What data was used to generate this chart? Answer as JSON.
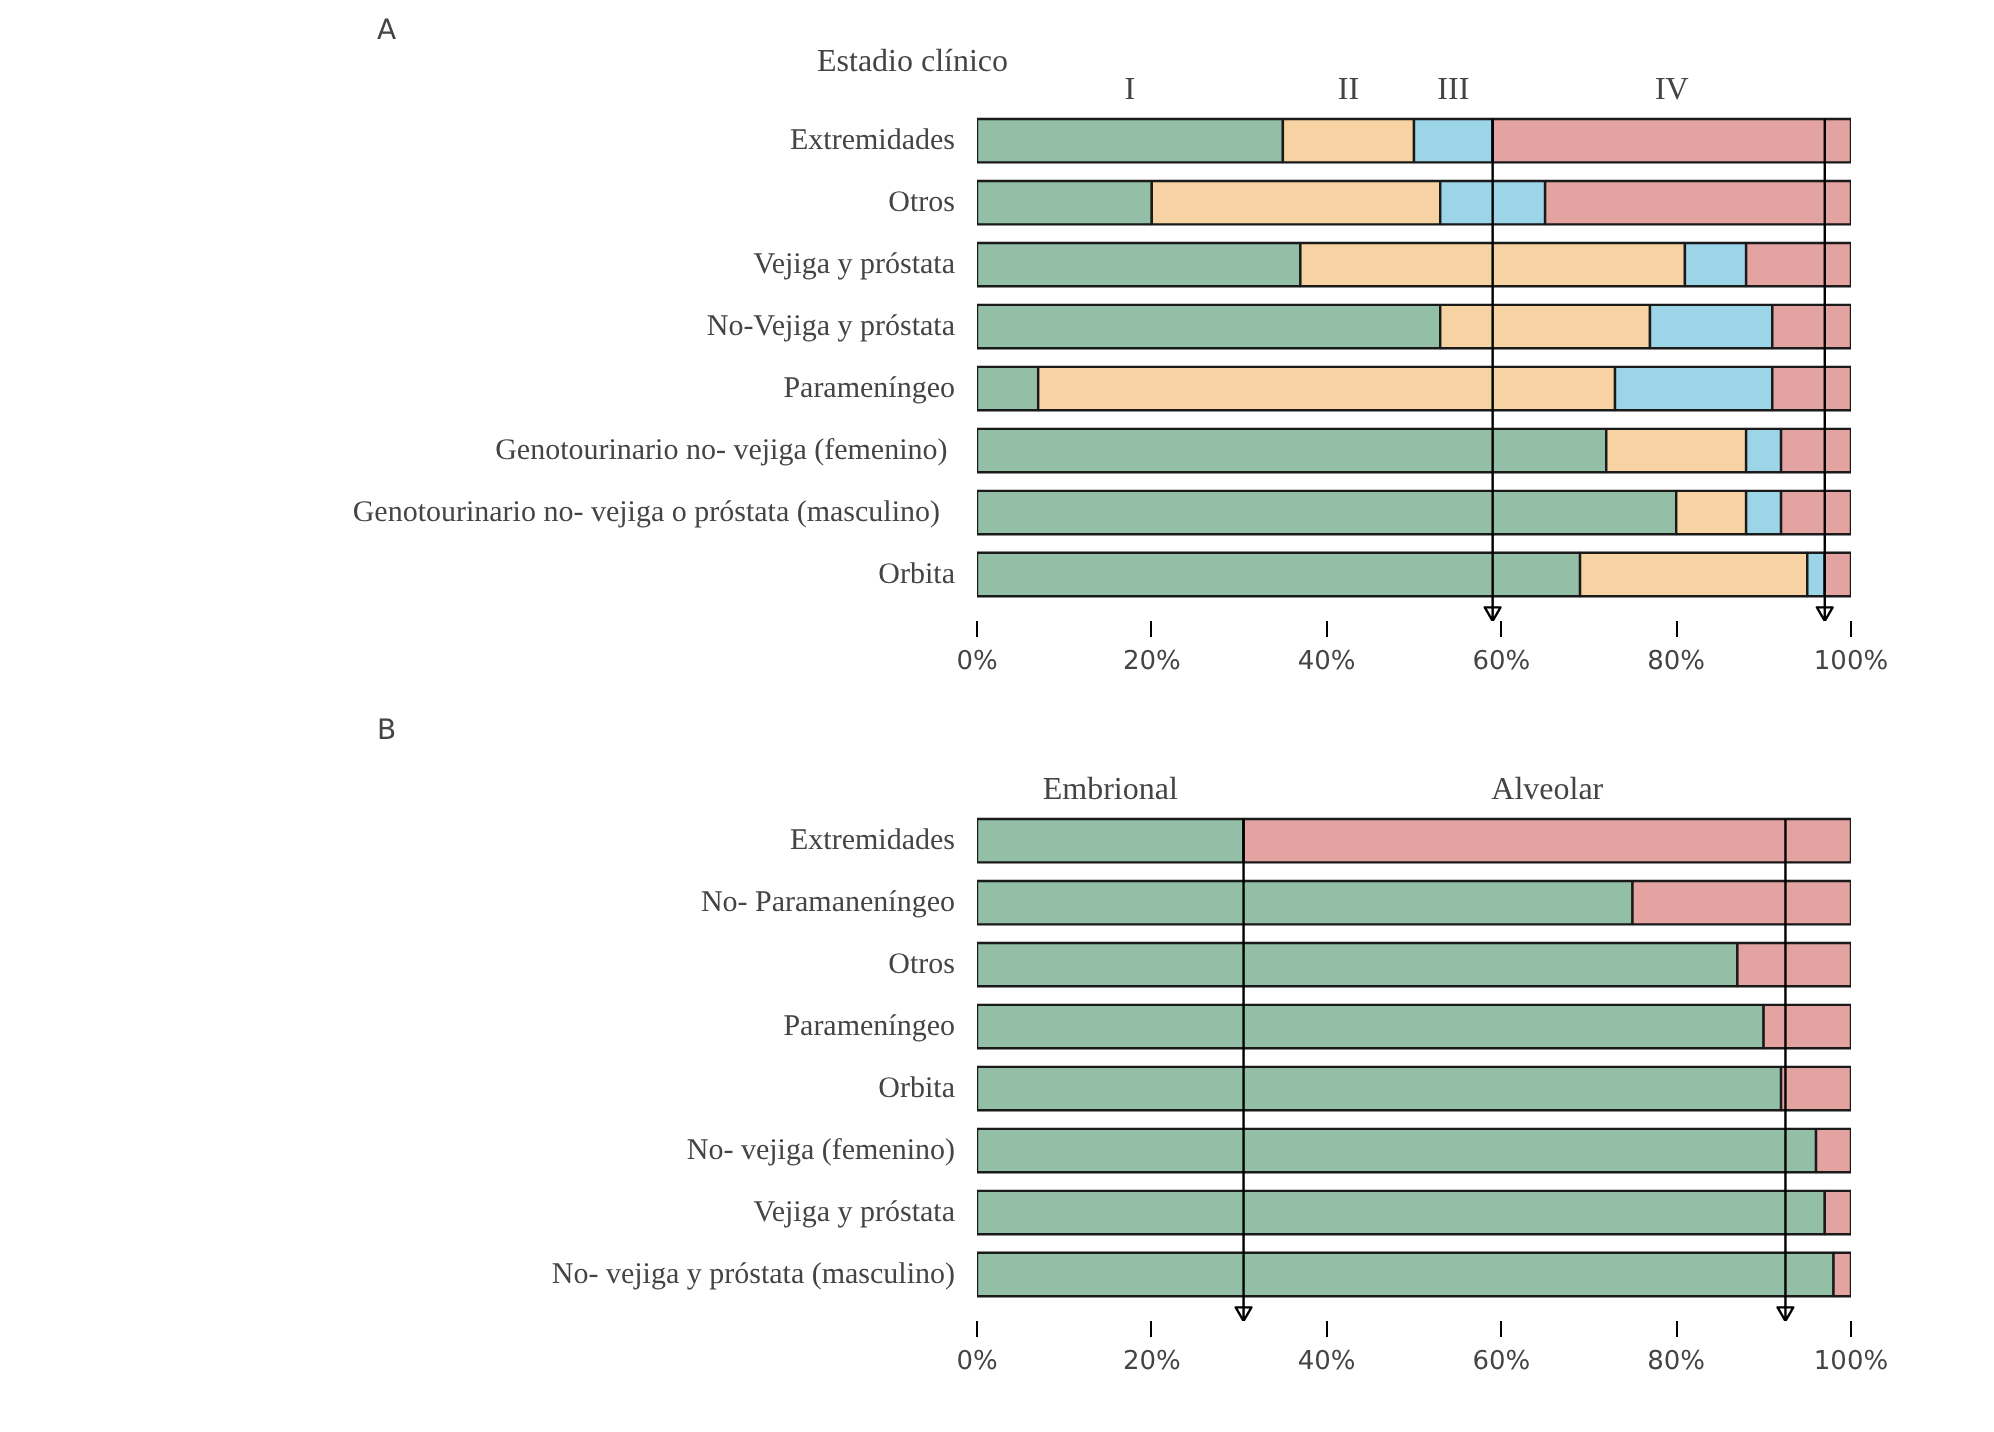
{
  "chart_data": [
    {
      "type": "bar",
      "orientation": "horizontal",
      "stacked": true,
      "title": "A",
      "legend_title": "Estadio clínico",
      "categories": [
        "Extremidades",
        "Otros",
        "Vejiga y próstata",
        "No-Vejiga y próstata",
        "Parameníngeo",
        "Genotourinario no-  vejiga (femenino)",
        "Genotourinario no-  vejiga o próstata  (masculino)",
        "Orbita"
      ],
      "series": [
        {
          "name": "I",
          "color": "#93bfa6",
          "values": [
            35,
            20,
            37,
            53,
            7,
            72,
            80,
            69
          ]
        },
        {
          "name": "II",
          "color": "#f7d3a3",
          "values": [
            15,
            33,
            44,
            24,
            66,
            16,
            8,
            26
          ]
        },
        {
          "name": "III",
          "color": "#9dd5e8",
          "values": [
            9,
            12,
            7,
            14,
            18,
            4,
            4,
            2
          ]
        },
        {
          "name": "IV",
          "color": "#e2a3a1",
          "values": [
            41,
            35,
            12,
            9,
            9,
            8,
            8,
            3
          ]
        }
      ],
      "xlim": [
        0,
        100
      ],
      "xticks": [
        {
          "value": 0,
          "label": "0%"
        },
        {
          "value": 20,
          "label": "20%"
        },
        {
          "value": 40,
          "label": "40%"
        },
        {
          "value": 60,
          "label": "60%"
        },
        {
          "value": 80,
          "label": "80%"
        },
        {
          "value": 100,
          "label": "100%"
        }
      ],
      "ref_lines": [
        {
          "axis": "x",
          "value": 59,
          "label": null
        },
        {
          "axis": "x",
          "value": 97,
          "label": null
        }
      ],
      "grid": false,
      "legend": false
    },
    {
      "type": "bar",
      "orientation": "horizontal",
      "stacked": true,
      "title": "B",
      "categories": [
        "Extremidades",
        "No- Paramaneníngeo",
        "Otros",
        "Parameníngeo",
        "Orbita",
        "No- vejiga (femenino)",
        "Vejiga y próstata",
        "No- vejiga y próstata (masculino)"
      ],
      "series": [
        {
          "name": "Embrional",
          "color": "#93bfa6",
          "values": [
            30.5,
            75,
            87,
            90,
            92,
            96,
            97,
            98
          ]
        },
        {
          "name": "Alveolar",
          "color": "#e2a3a1",
          "values": [
            69.5,
            25,
            13,
            10,
            8,
            4,
            3,
            2
          ]
        }
      ],
      "xlim": [
        0,
        100
      ],
      "xticks": [
        {
          "value": 0,
          "label": "0%"
        },
        {
          "value": 20,
          "label": "20%"
        },
        {
          "value": 40,
          "label": "40%"
        },
        {
          "value": 60,
          "label": "60%"
        },
        {
          "value": 80,
          "label": "80%"
        },
        {
          "value": 100,
          "label": "100%"
        }
      ],
      "ref_lines": [
        {
          "axis": "x",
          "value": 30.5,
          "label": null
        },
        {
          "axis": "x",
          "value": 92.5,
          "label": null
        }
      ],
      "grid": false,
      "legend": false
    }
  ]
}
